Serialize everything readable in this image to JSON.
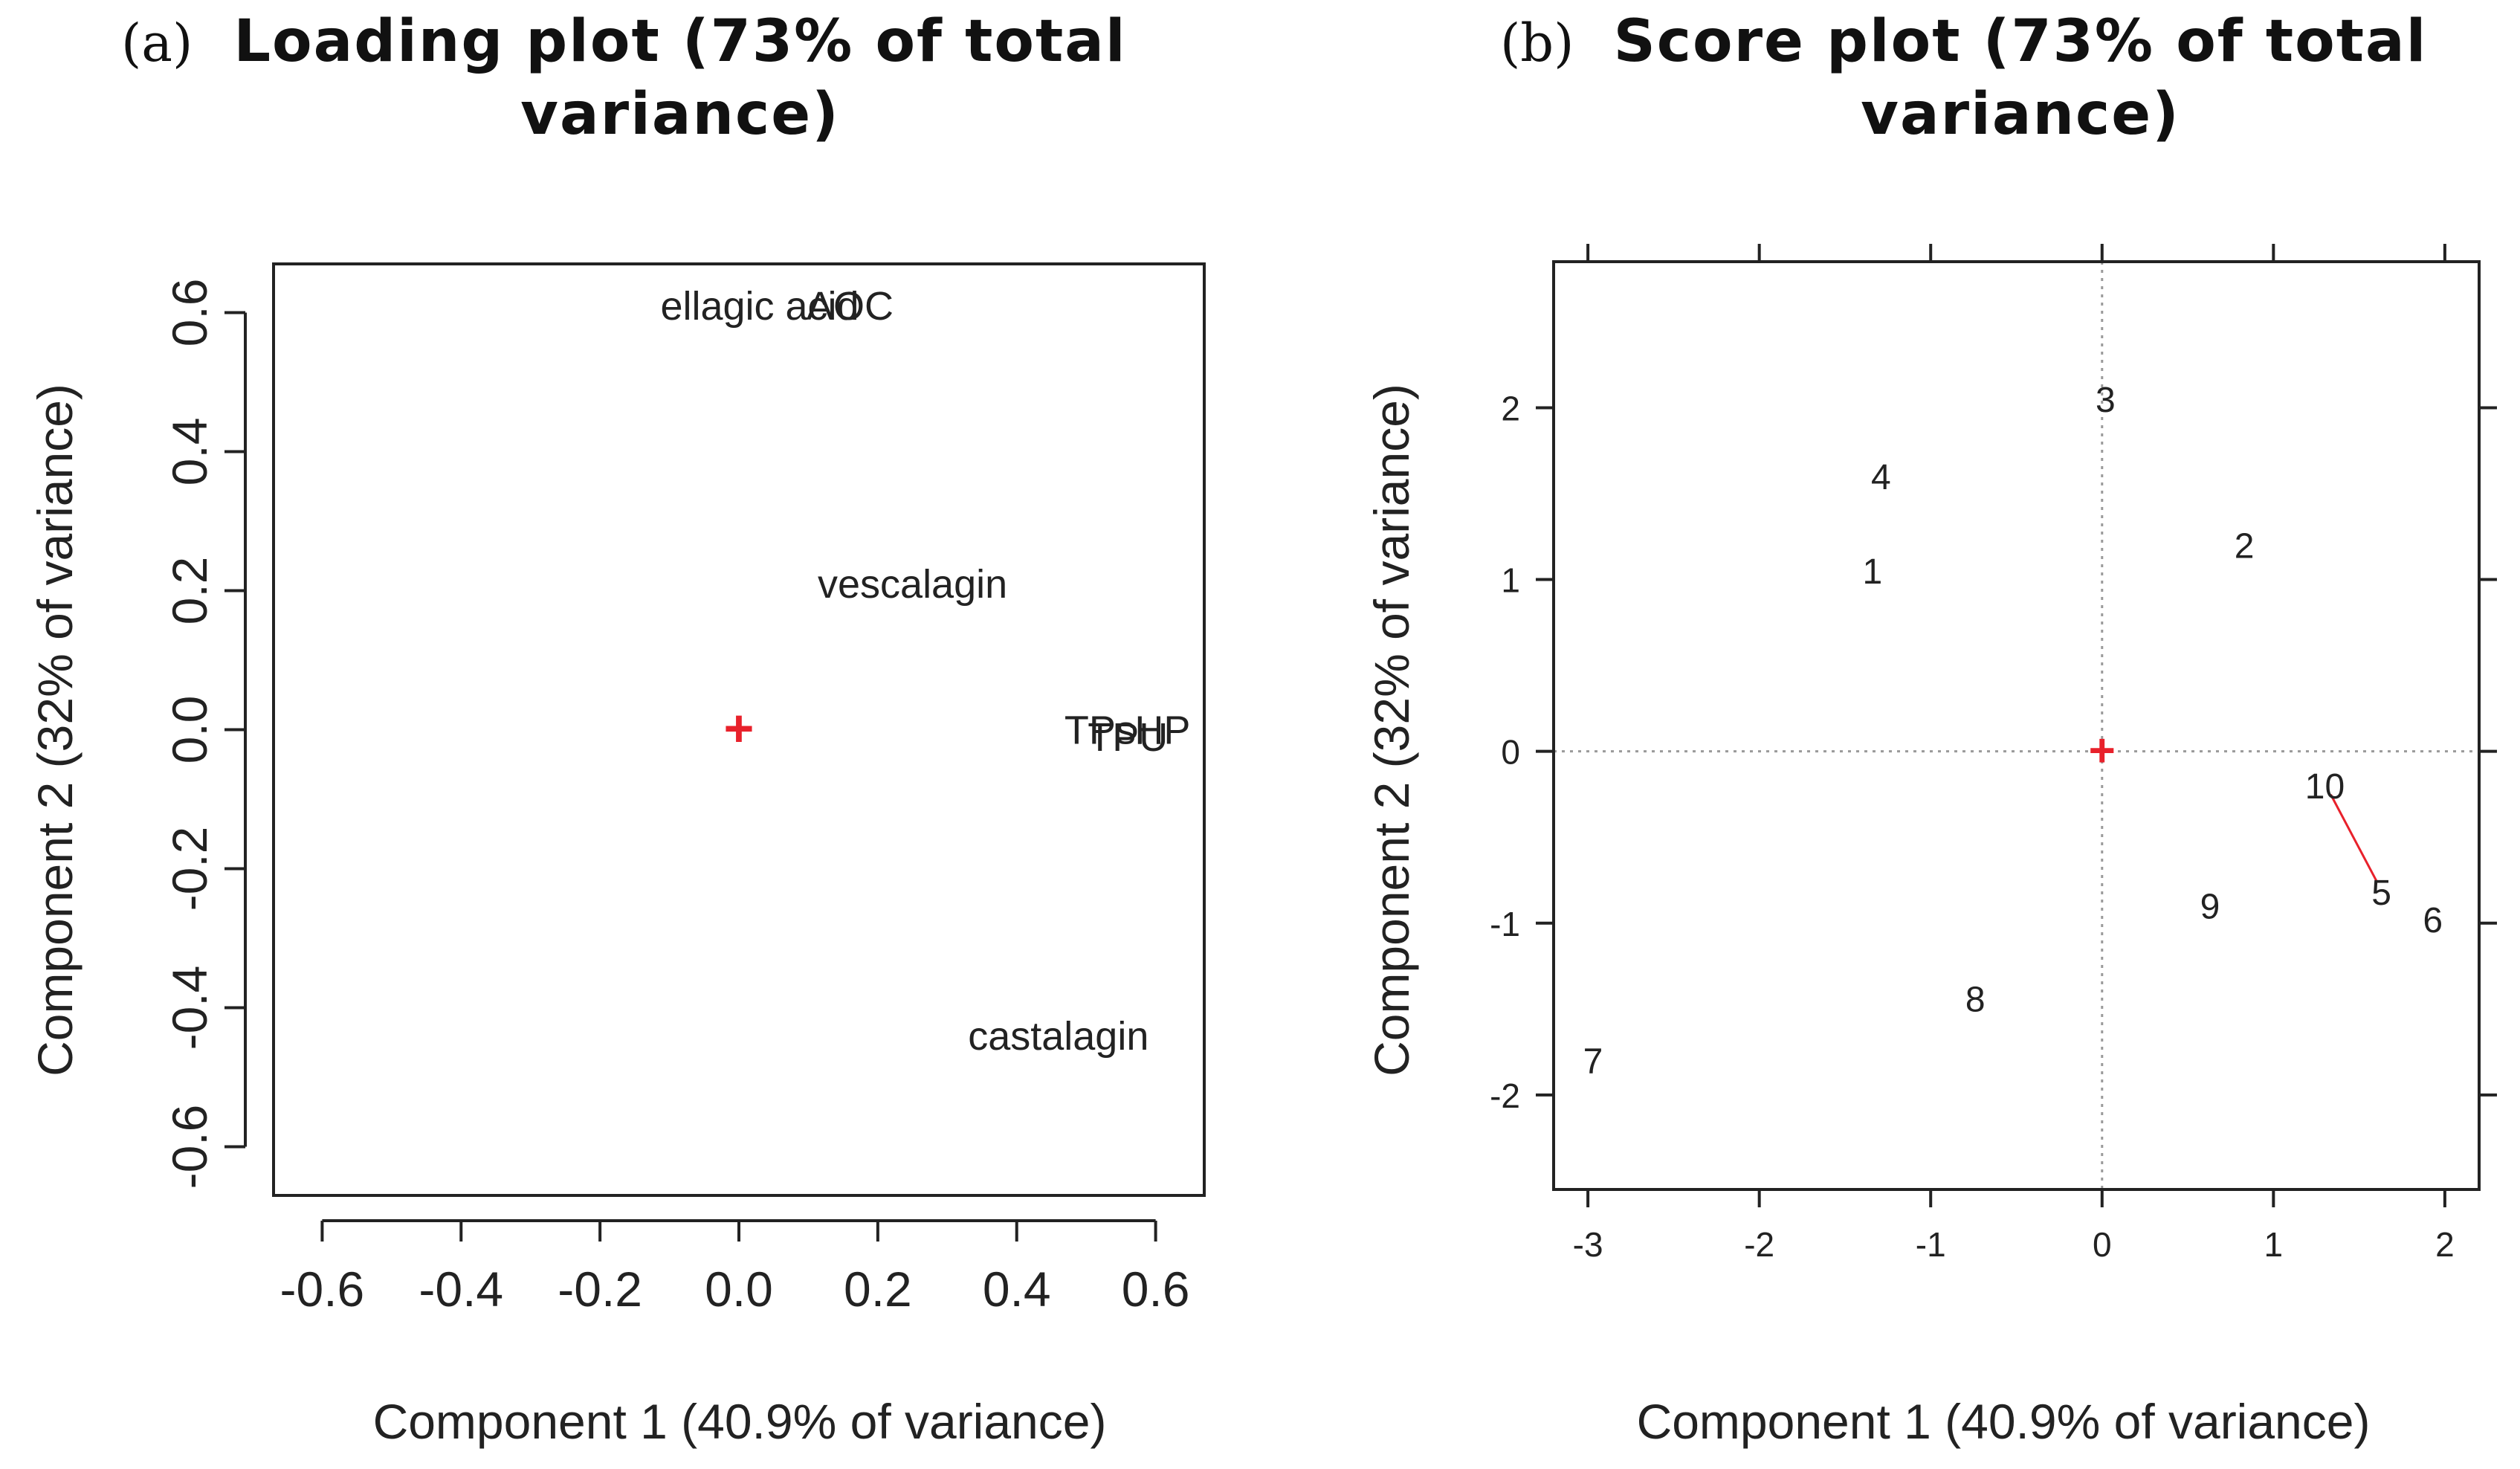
{
  "chart_data": [
    {
      "panel": "(a)",
      "type": "scatter",
      "title": "Loading plot (73% of total variance)",
      "title_lines": [
        "Loading plot (73% of total",
        "variance)"
      ],
      "xlabel": "Component 1 (40.9% of variance)",
      "ylabel": "Component 2 (32% of variance)",
      "xlim": [
        -0.67,
        0.67
      ],
      "ylim": [
        -0.67,
        0.67
      ],
      "xticks": [
        -0.6,
        -0.4,
        -0.2,
        0.0,
        0.2,
        0.4,
        0.6
      ],
      "xtick_labels": [
        "-0.6",
        "-0.4",
        "-0.2",
        "0.0",
        "0.2",
        "0.4",
        "0.6"
      ],
      "yticks": [
        -0.6,
        -0.4,
        -0.2,
        0.0,
        0.2,
        0.4,
        0.6
      ],
      "ytick_labels": [
        "-0.6",
        "-0.4",
        "-0.2",
        "0.0",
        "0.2",
        "0.4",
        "0.6"
      ],
      "origin_marker": {
        "x": 0.0,
        "y": 0.0,
        "symbol": "+",
        "color": "#e8212b"
      },
      "points": [
        {
          "label": "ellagic acid",
          "x": 0.03,
          "y": 0.61
        },
        {
          "label": "AOC",
          "x": 0.16,
          "y": 0.61
        },
        {
          "label": "vescalagin",
          "x": 0.25,
          "y": 0.21
        },
        {
          "label": "TPs",
          "x": 0.52,
          "y": 0.0
        },
        {
          "label": "HP",
          "x": 0.61,
          "y": 0.0
        },
        {
          "label": "TPU",
          "x": 0.56,
          "y": -0.01
        },
        {
          "label": "castalagin",
          "x": 0.46,
          "y": -0.44
        }
      ]
    },
    {
      "panel": "(b)",
      "type": "scatter",
      "title": "Score plot (73% of total variance)",
      "title_lines": [
        "Score plot (73% of total",
        "variance)"
      ],
      "xlabel": "Component 1 (40.9% of variance)",
      "ylabel": "Component 2 (32% of variance)",
      "xlim": [
        -3.2,
        2.2
      ],
      "ylim": [
        -2.55,
        2.85
      ],
      "xticks": [
        -3,
        -2,
        -1,
        0,
        1,
        2
      ],
      "xtick_labels": [
        "-3",
        "-2",
        "-1",
        "0",
        "1",
        "2"
      ],
      "yticks": [
        -2,
        -1,
        0,
        1,
        2
      ],
      "ytick_labels": [
        "-2",
        "-1",
        "0",
        "1",
        "2"
      ],
      "grid": "dotted lines at x=0 and y=0",
      "origin_marker": {
        "x": 0.0,
        "y": 0.0,
        "symbol": "+",
        "color": "#e8212b"
      },
      "points": [
        {
          "label": "1",
          "x": -1.34,
          "y": 1.05,
          "color": "#222222"
        },
        {
          "label": "2",
          "x": 0.83,
          "y": 1.2,
          "color": "#222222"
        },
        {
          "label": "3",
          "x": 0.02,
          "y": 2.05,
          "color": "#222222"
        },
        {
          "label": "4",
          "x": -1.29,
          "y": 1.6,
          "color": "#222222"
        },
        {
          "label": "5",
          "x": 1.63,
          "y": -0.82,
          "color": "#e8212b"
        },
        {
          "label": "6",
          "x": 1.93,
          "y": -0.98,
          "color": "#222222"
        },
        {
          "label": "7",
          "x": -2.97,
          "y": -1.8,
          "color": "#222222"
        },
        {
          "label": "8",
          "x": -0.74,
          "y": -1.44,
          "color": "#222222"
        },
        {
          "label": "9",
          "x": 0.63,
          "y": -0.9,
          "color": "#222222"
        },
        {
          "label": "10",
          "x": 1.3,
          "y": -0.2,
          "color": "#e8212b"
        }
      ],
      "connectors": [
        {
          "from": "10",
          "to": "5",
          "color": "#e8212b"
        }
      ]
    }
  ]
}
